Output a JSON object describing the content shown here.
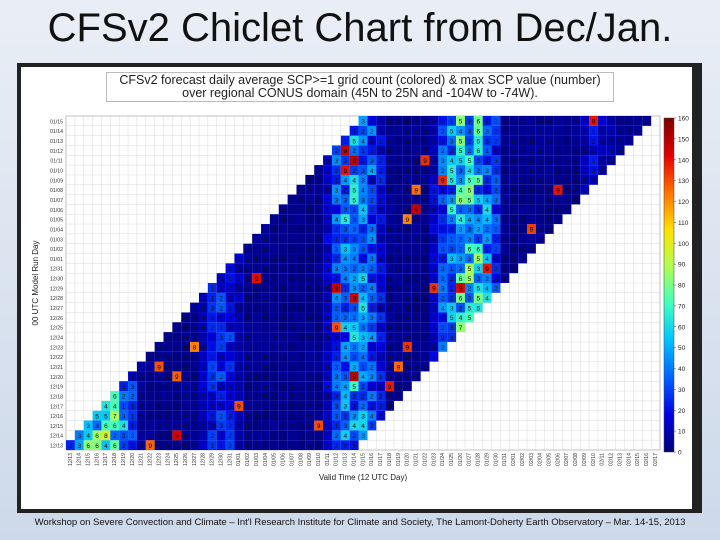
{
  "slide": {
    "title": "CFSv2 Chiclet Chart from Dec/Jan.",
    "footer": "Workshop on Severe Convection and Climate – Int'l Research Institute for Climate and Society, The Lamont-Doherty Earth Observatory – Mar. 14-15, 2013"
  },
  "chart_data": {
    "type": "heatmap",
    "title_line1": "CFSv2 forecast daily average SCP>=1 grid count (colored) & max SCP value (number)",
    "title_line2": "over regional CONUS domain (45N to 25N and -104W to -74W).",
    "xlabel": "Valid Time (12 UTC Day)",
    "ylabel": "00 UTC Model Run Day",
    "colorbar": {
      "min": 0,
      "max": 160,
      "ticks": [
        0,
        10,
        20,
        30,
        40,
        50,
        60,
        70,
        80,
        90,
        100,
        110,
        120,
        130,
        140,
        150,
        160
      ],
      "colors": [
        "#00007a",
        "#0000e0",
        "#0060ff",
        "#00c0ff",
        "#40ffc0",
        "#b0ff50",
        "#ffe000",
        "#ff7000",
        "#e00000",
        "#7a0000"
      ]
    },
    "run_days": [
      "12/13",
      "12/14",
      "12/15",
      "12/16",
      "12/17",
      "12/18",
      "12/19",
      "12/20",
      "12/21",
      "12/22",
      "12/23",
      "12/24",
      "12/25",
      "12/26",
      "12/27",
      "12/28",
      "12/29",
      "12/30",
      "12/31",
      "01/01",
      "01/02",
      "01/03",
      "01/04",
      "01/05",
      "01/06",
      "01/07",
      "01/08",
      "01/09",
      "01/10",
      "01/11",
      "01/12",
      "01/13",
      "01/14",
      "01/15"
    ],
    "valid_days": [
      "12/13",
      "12/14",
      "12/15",
      "12/16",
      "12/17",
      "12/18",
      "12/19",
      "12/20",
      "12/21",
      "12/22",
      "12/23",
      "12/24",
      "12/25",
      "12/26",
      "12/27",
      "12/28",
      "12/29",
      "12/30",
      "12/31",
      "01/01",
      "01/02",
      "01/03",
      "01/04",
      "01/05",
      "01/06",
      "01/07",
      "01/08",
      "01/09",
      "01/10",
      "01/11",
      "01/12",
      "01/13",
      "01/14",
      "01/15",
      "01/16",
      "01/17",
      "01/18",
      "01/19",
      "01/20",
      "01/21",
      "01/22",
      "01/23",
      "01/24",
      "01/25",
      "01/26",
      "01/27",
      "01/28",
      "01/29",
      "01/30",
      "01/31",
      "02/01",
      "02/02",
      "02/03",
      "02/04",
      "02/05",
      "02/06",
      "02/07",
      "02/08",
      "02/09",
      "02/10",
      "02/11",
      "02/12",
      "02/13",
      "02/14",
      "02/15",
      "02/16",
      "02/17"
    ],
    "forecast_length_days": 33
  }
}
